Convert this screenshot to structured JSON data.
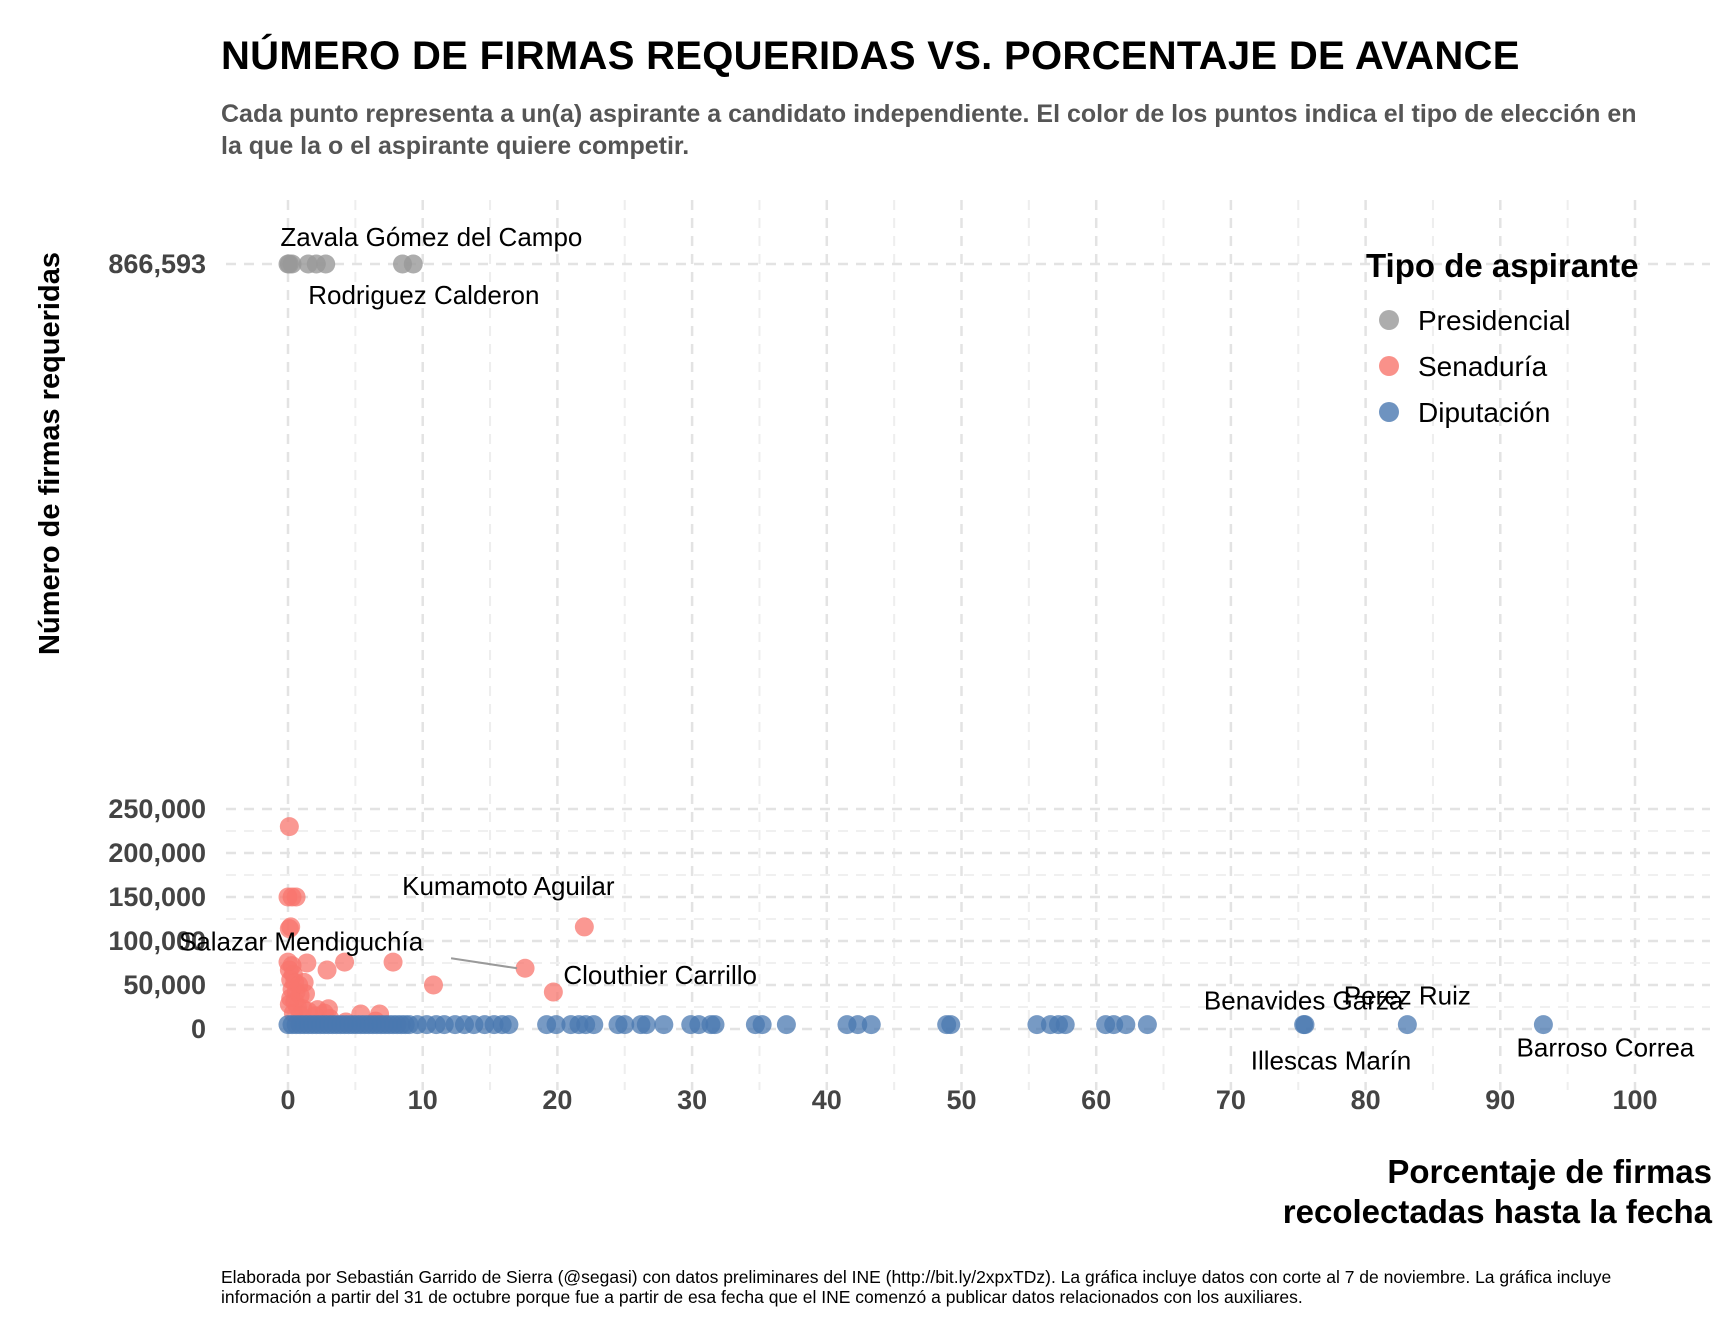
{
  "chart_data": {
    "type": "scatter",
    "title": "NÚMERO DE FIRMAS REQUERIDAS VS. PORCENTAJE DE AVANCE",
    "subtitle": "Cada punto representa a un(a) aspirante a candidato independiente. El color de los puntos indica el tipo de elección en la que la o el aspirante quiere competir.",
    "xlabel": "Porcentaje de firmas\nrecolectadas hasta la fecha",
    "ylabel": "Número de firmas requeridas",
    "caption": "Elaborada por Sebastián Garrido de Sierra (@segasi) con datos preliminares del INE (http://bit.ly/2xpxTDz). La gráfica incluye datos con corte al 7 de noviembre. La gráfica incluye información a partir del 31 de octubre porque fue a partir de esa fecha que el INE comenzó a publicar datos relacionados con los auxiliares.",
    "xlim": [
      0,
      100
    ],
    "x_ticks": [
      0,
      10,
      20,
      30,
      40,
      50,
      60,
      70,
      80,
      90,
      100
    ],
    "x_tick_labels": [
      "0",
      "10",
      "20",
      "30",
      "40",
      "50",
      "60",
      "70",
      "80",
      "90",
      "100"
    ],
    "y_ticks": [
      0,
      50000,
      100000,
      150000,
      200000,
      250000,
      866593
    ],
    "y_tick_labels": [
      "0",
      "50,000",
      "100,000",
      "150,000",
      "200,000",
      "250,000",
      "866,593"
    ],
    "grid": true,
    "legend": {
      "title": "Tipo de aspirante",
      "position": "top-right",
      "entries": [
        "Presidencial",
        "Senaduría",
        "Diputación"
      ]
    },
    "colors": {
      "Presidencial": "#999999",
      "Senaduría": "#F8766D",
      "Diputación": "#4A78B0"
    },
    "series": [
      {
        "name": "Presidencial",
        "points": [
          [
            0,
            866593
          ],
          [
            0.1,
            866593
          ],
          [
            0.3,
            866593
          ],
          [
            1.5,
            866593
          ],
          [
            2.1,
            866593
          ],
          [
            2.8,
            866593
          ],
          [
            8.5,
            866593
          ],
          [
            9.3,
            866593
          ]
        ]
      },
      {
        "name": "Senaduría",
        "points": [
          [
            0.1,
            230000
          ],
          [
            0,
            150000
          ],
          [
            0.3,
            150000
          ],
          [
            0.6,
            150000
          ],
          [
            0.2,
            116000
          ],
          [
            0.1,
            114000
          ],
          [
            0,
            76000
          ],
          [
            0.3,
            72000
          ],
          [
            0.1,
            67000
          ],
          [
            0.4,
            62000
          ],
          [
            0.2,
            56000
          ],
          [
            0.5,
            53000
          ],
          [
            0.8,
            50000
          ],
          [
            1.2,
            53000
          ],
          [
            0.3,
            45000
          ],
          [
            0.6,
            42000
          ],
          [
            0.9,
            38000
          ],
          [
            1.3,
            40000
          ],
          [
            0.2,
            35000
          ],
          [
            0.5,
            31000
          ],
          [
            0.1,
            28000
          ],
          [
            0.7,
            25000
          ],
          [
            1.1,
            23000
          ],
          [
            1.5,
            20000
          ],
          [
            0.4,
            18000
          ],
          [
            0.9,
            16000
          ],
          [
            1.4,
            75000
          ],
          [
            2.9,
            67000
          ],
          [
            4.2,
            76000
          ],
          [
            7.8,
            76000
          ],
          [
            10.8,
            50000
          ],
          [
            2.2,
            22000
          ],
          [
            2.7,
            18000
          ],
          [
            3.1,
            12000
          ],
          [
            4.3,
            8000
          ],
          [
            5.4,
            17000
          ],
          [
            6.8,
            17000
          ],
          [
            6.5,
            9000
          ],
          [
            2.0,
            15000
          ],
          [
            3.0,
            23000
          ],
          [
            17.6,
            69000
          ],
          [
            19.7,
            42000
          ],
          [
            22.0,
            116000
          ]
        ]
      },
      {
        "name": "Diputación",
        "points": [
          [
            0,
            5000
          ],
          [
            0.3,
            5000
          ],
          [
            0.6,
            5000
          ],
          [
            0.9,
            5000
          ],
          [
            1.2,
            5000
          ],
          [
            1.5,
            5000
          ],
          [
            1.8,
            5000
          ],
          [
            2.1,
            5000
          ],
          [
            2.4,
            5000
          ],
          [
            2.7,
            5000
          ],
          [
            3.0,
            5000
          ],
          [
            3.3,
            5000
          ],
          [
            3.6,
            5000
          ],
          [
            3.9,
            5000
          ],
          [
            4.2,
            5000
          ],
          [
            4.5,
            5000
          ],
          [
            4.8,
            5000
          ],
          [
            5.1,
            5000
          ],
          [
            5.4,
            5000
          ],
          [
            5.7,
            5000
          ],
          [
            6.0,
            5000
          ],
          [
            6.3,
            5000
          ],
          [
            6.6,
            5000
          ],
          [
            6.9,
            5000
          ],
          [
            7.2,
            5000
          ],
          [
            7.5,
            5000
          ],
          [
            7.8,
            5000
          ],
          [
            8.1,
            5000
          ],
          [
            8.4,
            5000
          ],
          [
            8.7,
            5000
          ],
          [
            9.0,
            5000
          ],
          [
            9.6,
            5000
          ],
          [
            10.3,
            5000
          ],
          [
            11.0,
            5000
          ],
          [
            11.6,
            5000
          ],
          [
            12.4,
            5000
          ],
          [
            13.1,
            5000
          ],
          [
            13.8,
            5000
          ],
          [
            14.6,
            5000
          ],
          [
            15.3,
            5000
          ],
          [
            15.9,
            5000
          ],
          [
            16.4,
            5000
          ],
          [
            19.2,
            5000
          ],
          [
            19.9,
            5000
          ],
          [
            21.0,
            5000
          ],
          [
            21.6,
            5000
          ],
          [
            22.1,
            5000
          ],
          [
            22.7,
            5000
          ],
          [
            24.5,
            5000
          ],
          [
            25.0,
            5000
          ],
          [
            26.2,
            5000
          ],
          [
            26.6,
            5000
          ],
          [
            27.9,
            5000
          ],
          [
            29.9,
            5000
          ],
          [
            30.5,
            5000
          ],
          [
            31.4,
            5000
          ],
          [
            31.7,
            5000
          ],
          [
            34.7,
            5000
          ],
          [
            35.2,
            5000
          ],
          [
            37.0,
            5000
          ],
          [
            41.5,
            5000
          ],
          [
            42.3,
            5000
          ],
          [
            43.3,
            5000
          ],
          [
            48.9,
            5000
          ],
          [
            49.2,
            5000
          ],
          [
            55.6,
            5000
          ],
          [
            56.6,
            5000
          ],
          [
            57.2,
            5000
          ],
          [
            57.7,
            5000
          ],
          [
            60.7,
            5000
          ],
          [
            61.3,
            5000
          ],
          [
            62.2,
            5000
          ],
          [
            63.8,
            5000
          ],
          [
            75.4,
            5000
          ],
          [
            75.5,
            5000
          ],
          [
            83.1,
            5000
          ],
          [
            93.2,
            5000
          ]
        ]
      }
    ],
    "annotations": [
      {
        "text": "Zavala Gómez del Campo",
        "x": 0.1,
        "y": 866593
      },
      {
        "text": "Rodriguez Calderon",
        "x": 1.5,
        "y": 866593
      },
      {
        "text": "Kumamoto Aguilar",
        "x": 22.0,
        "y": 116000
      },
      {
        "text": "Salazar Mendiguchía",
        "x": 17.6,
        "y": 69000
      },
      {
        "text": "Clouthier Carrillo",
        "x": 19.7,
        "y": 42000
      },
      {
        "text": "Benavides Garza",
        "x": 75.4,
        "y": 5000
      },
      {
        "text": "Perez Ruiz",
        "x": 83.1,
        "y": 5000
      },
      {
        "text": "Illescas Marín",
        "x": 75.5,
        "y": 5000
      },
      {
        "text": "Barroso Correa",
        "x": 93.2,
        "y": 5000
      }
    ]
  }
}
